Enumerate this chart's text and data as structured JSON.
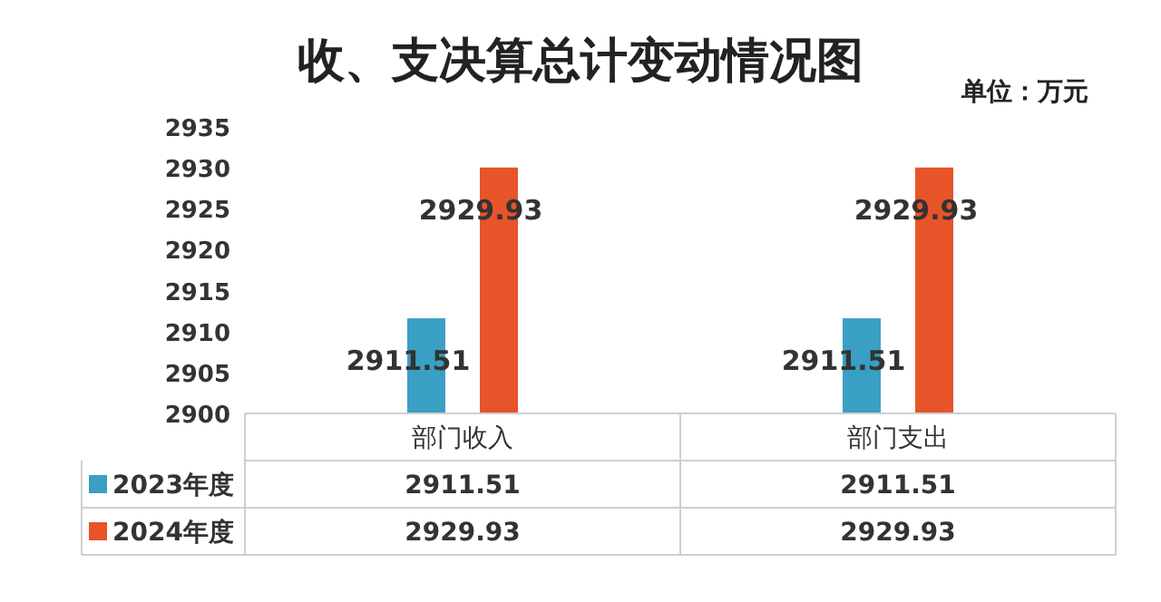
{
  "chart_data": {
    "type": "bar",
    "title": "收、支决算总计变动情况图",
    "annotations": [
      "单位：万元",
      "2911.51",
      "2911.51",
      "2929.93",
      "2929.93"
    ],
    "categories": [
      "部门收入",
      "部门支出"
    ],
    "series": [
      {
        "name": "2023年度",
        "color": "#3a9fc4",
        "values": [
          2911.51,
          2911.51
        ],
        "value_labels": [
          "2911.51",
          "2911.51"
        ]
      },
      {
        "name": "2024年度",
        "color": "#e8542a",
        "values": [
          2929.93,
          2929.93
        ],
        "value_labels": [
          "2929.93",
          "2929.93"
        ]
      }
    ],
    "ylim": [
      2900,
      2935
    ],
    "yticks": [
      2900,
      2905,
      2910,
      2915,
      2920,
      2925,
      2930,
      2935
    ],
    "legend": "bottom",
    "grid": false
  }
}
